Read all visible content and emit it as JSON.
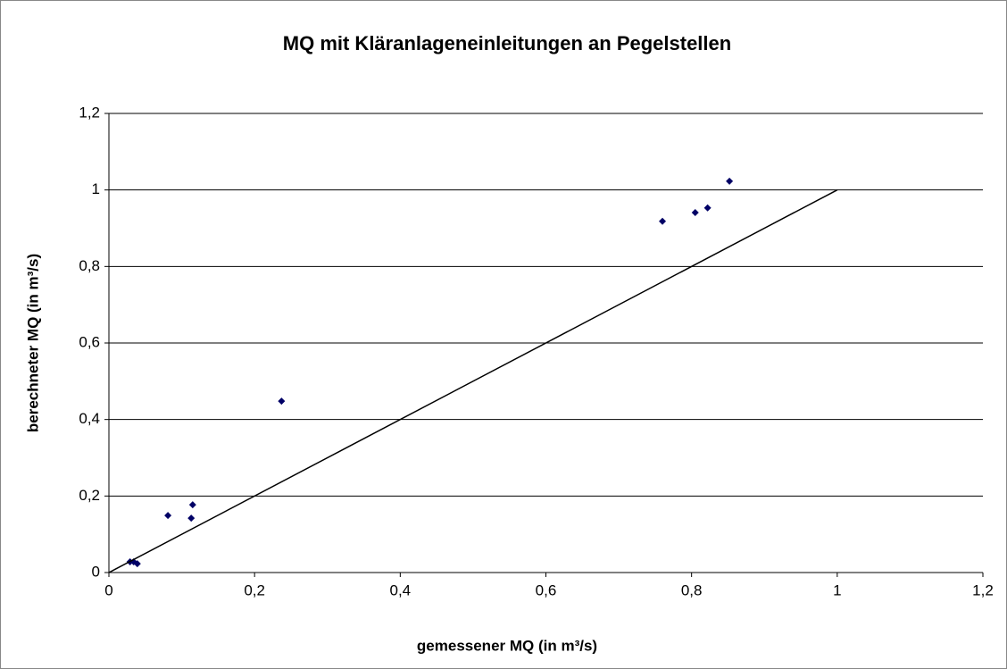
{
  "chart_data": {
    "type": "scatter",
    "title": "MQ mit Kläranlageneinleitungen an Pegelstellen",
    "x_label": "gemessener MQ (in m³/s)",
    "y_label": "berechneter MQ (in m³/s)",
    "series": [
      {
        "color": "#000066",
        "mode": "markers",
        "x": [
          0.029,
          0.034,
          0.039,
          0.081,
          0.113,
          0.115,
          0.237,
          0.76,
          0.805,
          0.822,
          0.852
        ],
        "values": [
          0.028,
          0.028,
          0.023,
          0.149,
          0.142,
          0.177,
          0.448,
          0.918,
          0.941,
          0.953,
          1.023
        ]
      },
      {
        "color": "#000000",
        "mode": "line",
        "x": [
          0,
          1
        ],
        "values": [
          0,
          1
        ]
      }
    ],
    "xlim": [
      0,
      1.2
    ],
    "ylim": [
      0,
      1.2
    ],
    "xticks": [
      0,
      {
        "value": 0.2,
        "label": "0,2"
      },
      {
        "value": 0.4,
        "label": "0,4"
      },
      {
        "value": 0.6,
        "label": "0,6"
      },
      {
        "value": 0.8,
        "label": "0,8"
      },
      1,
      {
        "value": 1.2,
        "label": "1,2"
      }
    ],
    "yticks": [
      0,
      {
        "value": 0.2,
        "label": "0,2"
      },
      {
        "value": 0.4,
        "label": "0,4"
      },
      {
        "value": 0.6,
        "label": "0,6"
      },
      {
        "value": 0.8,
        "label": "0,8"
      },
      1,
      {
        "value": 1.2,
        "label": "1,2"
      }
    ],
    "grid": true
  }
}
